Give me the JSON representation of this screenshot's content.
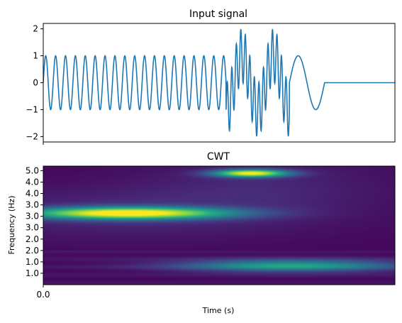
{
  "chart_data": [
    {
      "type": "line",
      "title": "Input signal",
      "xlabel": "",
      "ylabel": "",
      "x_tick_labels_shown": false,
      "ylim": [
        -2.2,
        2.2
      ],
      "yticks": [
        "2",
        "1",
        "0",
        "−1",
        "−2"
      ],
      "ytick_values": [
        2,
        1,
        0,
        -1,
        -2
      ],
      "xlim": [
        0,
        1
      ],
      "line_color": "#1f77b4",
      "series": [
        {
          "segments": [
            {
              "x_from": 0.0,
              "x_to": 0.52,
              "amplitude": 1.0,
              "cycles": 18.5
            },
            {
              "x_from": 0.52,
              "x_to": 0.7,
              "amplitude": 2.0,
              "cycles": 7,
              "note_type": "sum-of-two"
            },
            {
              "x_from": 0.7,
              "x_to": 0.8,
              "amplitude": 1.0,
              "cycles": 1.0
            },
            {
              "x_from": 0.8,
              "x_to": 1.0,
              "amplitude": 0.0,
              "cycles": 0
            }
          ]
        }
      ]
    },
    {
      "type": "heatmap",
      "title": "CWT",
      "xlabel": "Time (s)",
      "ylabel": "Frequency (Hz)",
      "xticks": [
        "0.0"
      ],
      "xtick_values": [
        0
      ],
      "yticks": [
        "5.0",
        "4.0",
        "4.0",
        "3.0",
        "3.0",
        "3.0",
        "2.0",
        "2.0",
        "1.0",
        "1.0"
      ],
      "ytick_values": [
        10,
        9,
        8,
        7,
        6,
        5,
        4,
        3,
        2,
        1
      ],
      "colormap": "viridis",
      "blobs": [
        {
          "x": 0.24,
          "y": 6.3,
          "rx": 0.3,
          "ry": 0.55,
          "intensity": 1.0
        },
        {
          "x": 0.59,
          "y": 9.8,
          "rx": 0.11,
          "ry": 0.35,
          "intensity": 0.95
        },
        {
          "x": 0.7,
          "y": 1.7,
          "rx": 0.33,
          "ry": 0.55,
          "intensity": 0.55
        }
      ]
    }
  ]
}
